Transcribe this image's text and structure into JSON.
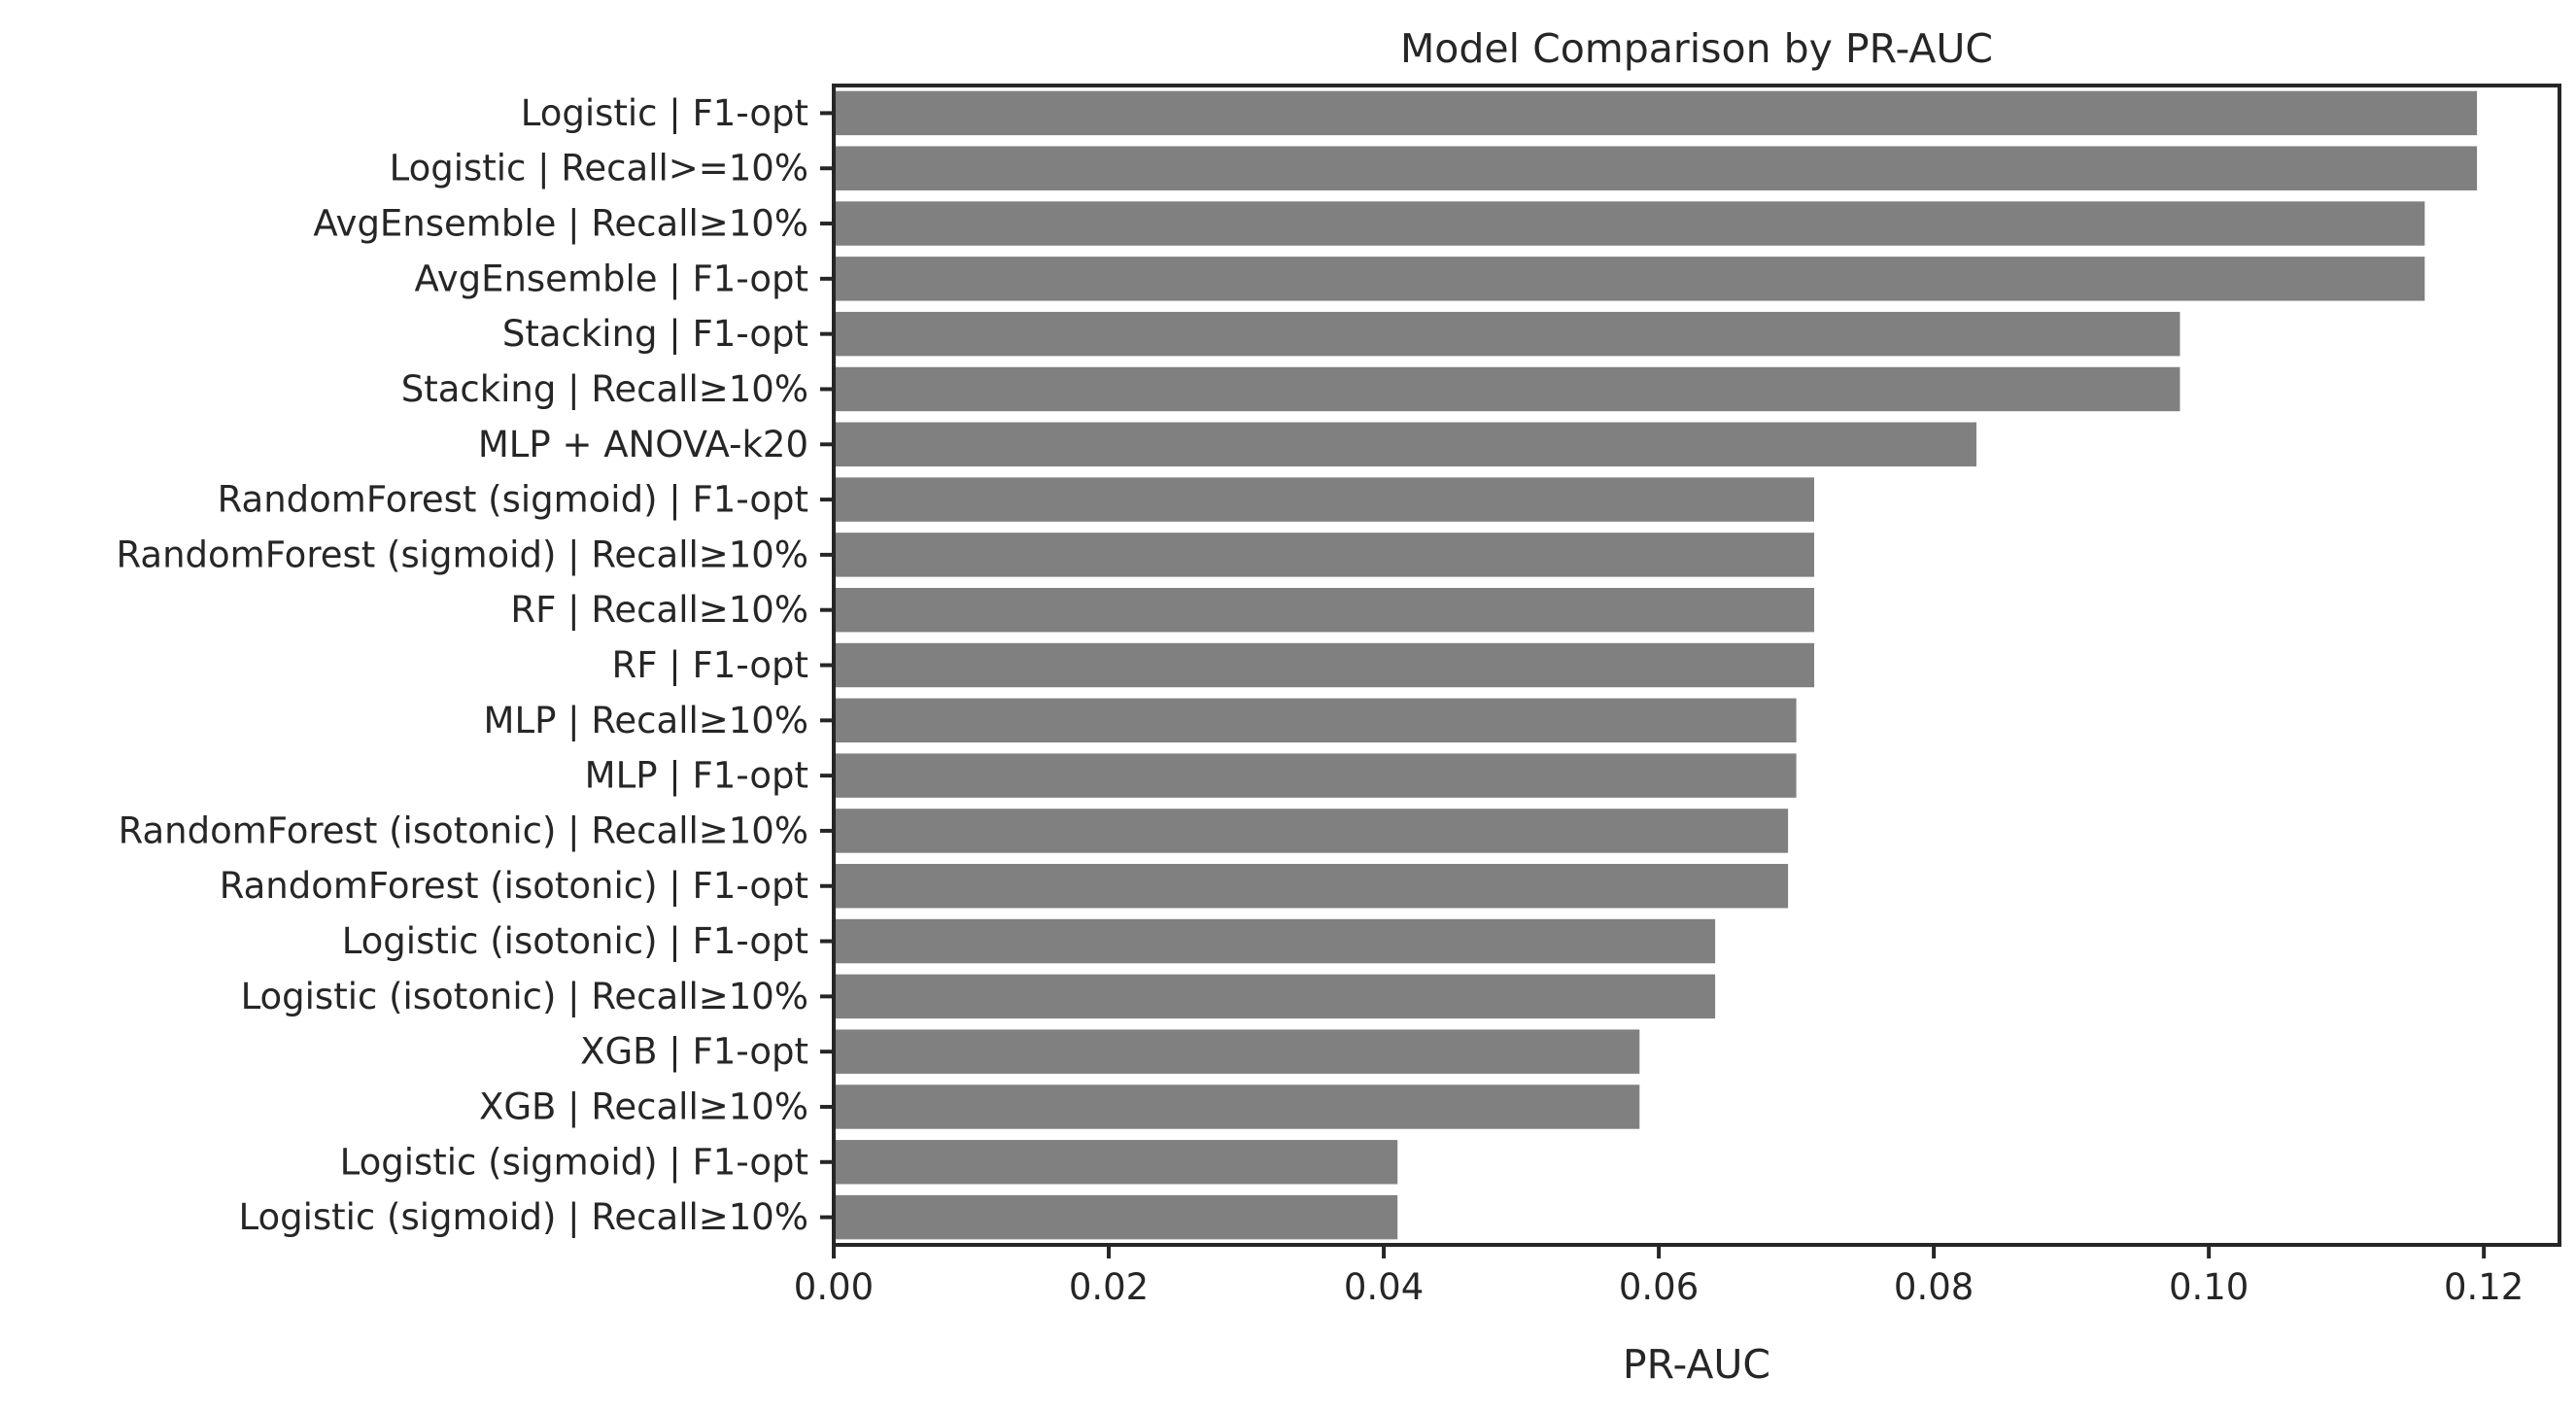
{
  "chart_data": {
    "type": "bar",
    "orientation": "horizontal",
    "title": "Model Comparison by PR-AUC",
    "xlabel": "PR-AUC",
    "ylabel": "",
    "xlim": [
      0,
      0.1255
    ],
    "xticks": [
      "0.00",
      "0.02",
      "0.04",
      "0.06",
      "0.08",
      "0.10",
      "0.12"
    ],
    "grid": false,
    "bar_color": "#808080",
    "categories": [
      "Logistic | F1-opt",
      "Logistic | Recall>=10%",
      "AvgEnsemble | Recall≥10%",
      "AvgEnsemble | F1-opt",
      "Stacking | F1-opt",
      "Stacking | Recall≥10%",
      "MLP + ANOVA-k20",
      "RandomForest (sigmoid) | F1-opt",
      "RandomForest (sigmoid) | Recall≥10%",
      "RF | Recall≥10%",
      "RF | F1-opt",
      "MLP | Recall≥10%",
      "MLP | F1-opt",
      "RandomForest (isotonic) | Recall≥10%",
      "RandomForest (isotonic) | F1-opt",
      "Logistic (isotonic) | F1-opt",
      "Logistic (isotonic) | Recall≥10%",
      "XGB | F1-opt",
      "XGB | Recall≥10%",
      "Logistic (sigmoid) | F1-opt",
      "Logistic (sigmoid) | Recall≥10%"
    ],
    "values": [
      0.1195,
      0.1195,
      0.1157,
      0.1157,
      0.0979,
      0.0979,
      0.0831,
      0.0713,
      0.0713,
      0.0713,
      0.0713,
      0.07,
      0.07,
      0.0694,
      0.0694,
      0.0641,
      0.0641,
      0.0586,
      0.0586,
      0.041,
      0.041
    ]
  }
}
